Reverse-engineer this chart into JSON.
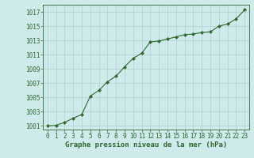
{
  "x": [
    0,
    1,
    2,
    3,
    4,
    5,
    6,
    7,
    8,
    9,
    10,
    11,
    12,
    13,
    14,
    15,
    16,
    17,
    18,
    19,
    20,
    21,
    22,
    23
  ],
  "y": [
    1001.0,
    1001.1,
    1001.5,
    1002.1,
    1002.6,
    1005.2,
    1006.0,
    1007.2,
    1008.0,
    1009.3,
    1010.5,
    1011.2,
    1012.8,
    1012.9,
    1013.2,
    1013.5,
    1013.8,
    1013.9,
    1014.1,
    1014.2,
    1015.0,
    1015.3,
    1016.0,
    1017.3
  ],
  "line_color": "#2d6a2d",
  "marker_color": "#2d6a2d",
  "bg_color": "#ceeaea",
  "grid_color": "#b0d0d0",
  "xlabel": "Graphe pression niveau de la mer (hPa)",
  "ylim": [
    1000.5,
    1018.0
  ],
  "xlim": [
    -0.5,
    23.5
  ],
  "yticks": [
    1001,
    1003,
    1005,
    1007,
    1009,
    1011,
    1013,
    1015,
    1017
  ],
  "xticks": [
    0,
    1,
    2,
    3,
    4,
    5,
    6,
    7,
    8,
    9,
    10,
    11,
    12,
    13,
    14,
    15,
    16,
    17,
    18,
    19,
    20,
    21,
    22,
    23
  ],
  "xlabel_fontsize": 6.5,
  "tick_fontsize": 5.5,
  "tick_color": "#2d6a2d",
  "border_color": "#2d6a2d",
  "line_width": 0.8,
  "marker_size": 2.2
}
